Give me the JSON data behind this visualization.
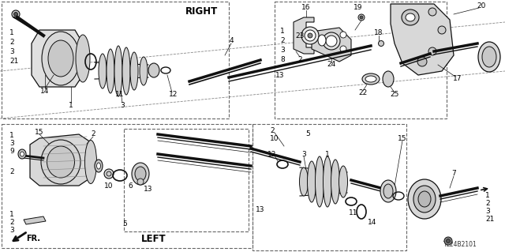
{
  "background": "#ffffff",
  "line_color": "#111111",
  "gray_dark": "#555555",
  "gray_mid": "#888888",
  "gray_light": "#bbbbbb",
  "gray_fill": "#cccccc",
  "gray_part": "#aaaaaa",
  "label_RIGHT": "RIGHT",
  "label_LEFT": "LEFT",
  "label_FR": "FR.",
  "diagram_id": "TL24B2101",
  "fs": 6.5,
  "fs_big": 8.5
}
